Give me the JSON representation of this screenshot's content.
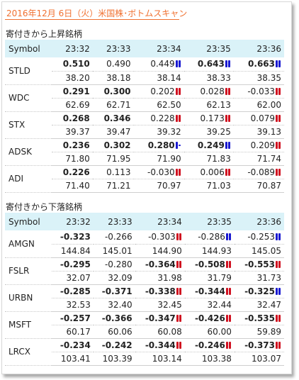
{
  "page_title": "2016年12月 6日（火）米国株･ボトムスキャン",
  "sections": [
    {
      "title": "寄付きから上昇銘柄",
      "header": [
        "Symbol",
        "23:32",
        "23:33",
        "23:34",
        "23:35",
        "23:36"
      ],
      "rows": [
        {
          "symbol": "STLD",
          "changes": [
            "0.510",
            "0.490",
            "0.449",
            "0.643",
            "0.663"
          ],
          "change_styles": [
            "pos",
            "flat",
            "flat",
            "pos",
            "pos"
          ],
          "change_markers": [
            "",
            "",
            "up",
            "up",
            "up"
          ],
          "prices": [
            "38.20",
            "38.18",
            "38.14",
            "38.33",
            "38.35"
          ]
        },
        {
          "symbol": "WDC",
          "changes": [
            "0.291",
            "0.300",
            "0.202",
            "0.028",
            "-0.033"
          ],
          "change_styles": [
            "pos",
            "pos",
            "flat",
            "flat",
            "flat"
          ],
          "change_markers": [
            "",
            "",
            "dn",
            "dn",
            "dn"
          ],
          "prices": [
            "62.69",
            "62.71",
            "62.50",
            "62.13",
            "62.00"
          ]
        },
        {
          "symbol": "STX",
          "changes": [
            "0.268",
            "0.346",
            "0.228",
            "0.173",
            "0.079"
          ],
          "change_styles": [
            "pos",
            "pos",
            "flat",
            "flat",
            "flat"
          ],
          "change_markers": [
            "",
            "",
            "dn",
            "dn",
            "dn"
          ],
          "prices": [
            "39.37",
            "39.47",
            "39.32",
            "39.25",
            "39.13"
          ]
        },
        {
          "symbol": "ADSK",
          "changes": [
            "0.236",
            "0.302",
            "0.280",
            "0.249",
            "0.209"
          ],
          "change_styles": [
            "pos",
            "pos",
            "pos",
            "pos",
            "flat"
          ],
          "change_markers": [
            "",
            "",
            "upone",
            "up",
            "dn"
          ],
          "prices": [
            "71.80",
            "71.95",
            "71.90",
            "71.83",
            "71.74"
          ]
        },
        {
          "symbol": "ADI",
          "changes": [
            "0.226",
            "0.113",
            "-0.030",
            "0.006",
            "-0.089"
          ],
          "change_styles": [
            "pos",
            "flat",
            "flat",
            "flat",
            "flat"
          ],
          "change_markers": [
            "",
            "",
            "dn",
            "dn",
            "dn"
          ],
          "prices": [
            "71.40",
            "71.21",
            "70.97",
            "71.03",
            "70.87"
          ]
        }
      ]
    },
    {
      "title": "寄付きから下落銘柄",
      "header": [
        "Symbol",
        "23:32",
        "23:33",
        "23:34",
        "23:35",
        "23:36"
      ],
      "rows": [
        {
          "symbol": "AMGN",
          "changes": [
            "-0.323",
            "-0.266",
            "-0.303",
            "-0.286",
            "-0.253"
          ],
          "change_styles": [
            "neg",
            "flat",
            "flat",
            "flat",
            "flat"
          ],
          "change_markers": [
            "",
            "",
            "dn",
            "up",
            "up"
          ],
          "prices": [
            "144.84",
            "145.01",
            "144.90",
            "144.93",
            "145.05"
          ]
        },
        {
          "symbol": "FSLR",
          "changes": [
            "-0.295",
            "-0.280",
            "-0.364",
            "-0.508",
            "-0.553"
          ],
          "change_styles": [
            "neg",
            "flat",
            "neg",
            "neg",
            "neg"
          ],
          "change_markers": [
            "",
            "",
            "dn",
            "dn",
            "dn"
          ],
          "prices": [
            "32.07",
            "32.09",
            "31.98",
            "31.79",
            "31.73"
          ]
        },
        {
          "symbol": "URBN",
          "changes": [
            "-0.285",
            "-0.371",
            "-0.338",
            "-0.344",
            "-0.325"
          ],
          "change_styles": [
            "neg",
            "neg",
            "neg",
            "neg",
            "neg"
          ],
          "change_markers": [
            "",
            "",
            "dn",
            "dn",
            "up"
          ],
          "prices": [
            "32.53",
            "32.40",
            "32.45",
            "32.44",
            "32.47"
          ]
        },
        {
          "symbol": "MSFT",
          "changes": [
            "-0.257",
            "-0.366",
            "-0.347",
            "-0.426",
            "-0.535"
          ],
          "change_styles": [
            "neg",
            "neg",
            "neg",
            "neg",
            "neg"
          ],
          "change_markers": [
            "",
            "",
            "dn",
            "dn",
            "dn"
          ],
          "prices": [
            "60.17",
            "60.06",
            "60.08",
            "60.00",
            "59.89"
          ]
        },
        {
          "symbol": "LRCX",
          "changes": [
            "-0.234",
            "-0.242",
            "-0.344",
            "-0.246",
            "-0.373"
          ],
          "change_styles": [
            "neg",
            "neg",
            "neg",
            "neg",
            "neg"
          ],
          "change_markers": [
            "",
            "",
            "dn",
            "dn",
            "dn"
          ],
          "prices": [
            "103.41",
            "103.39",
            "103.14",
            "103.38",
            "103.07"
          ]
        }
      ]
    }
  ],
  "colors": {
    "title": "#f07030",
    "header_bg": "#daf2f8",
    "up": "#1a1ad0",
    "down": "#d01020"
  },
  "icons": {
    "up": "blue-double-bar-icon",
    "dn": "red-double-bar-icon",
    "upone": "blue-bar-dash-icon"
  }
}
